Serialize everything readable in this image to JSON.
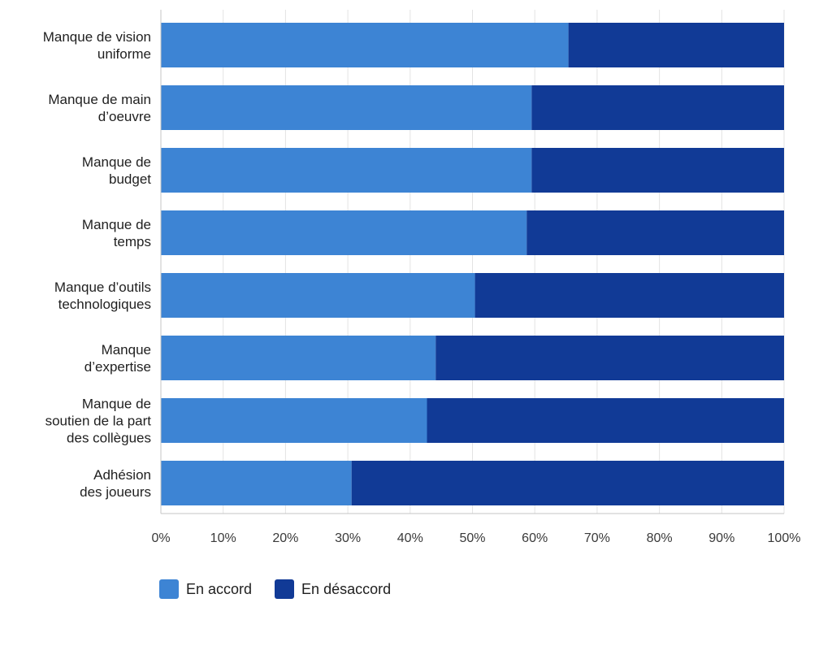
{
  "chart_data": {
    "type": "bar",
    "orientation": "horizontal",
    "stacked": true,
    "categories": [
      [
        "Manque de vision",
        "uniforme"
      ],
      [
        "Manque de main",
        "d’oeuvre"
      ],
      [
        "Manque de",
        "budget"
      ],
      [
        "Manque de",
        "temps"
      ],
      [
        "Manque d’outils",
        "technologiques"
      ],
      [
        "Manque",
        "d’expertise"
      ],
      [
        "Manque de",
        "soutien de la part",
        "des collègues"
      ],
      [
        "Adhésion",
        "des joueurs"
      ]
    ],
    "series": [
      {
        "name": "En accord",
        "color": "#3d84d4",
        "values": [
          65.4,
          59.5,
          59.5,
          58.7,
          50.4,
          44.1,
          42.7,
          30.6
        ]
      },
      {
        "name": "En désaccord",
        "color": "#113a96",
        "values": [
          34.6,
          40.5,
          40.5,
          41.3,
          49.6,
          55.9,
          57.3,
          69.4
        ]
      }
    ],
    "xlim": [
      0,
      100
    ],
    "xticks": [
      0,
      10,
      20,
      30,
      40,
      50,
      60,
      70,
      80,
      90,
      100
    ],
    "tick_suffix": "%",
    "grid": "vertical",
    "legend_position": "bottom-left"
  }
}
